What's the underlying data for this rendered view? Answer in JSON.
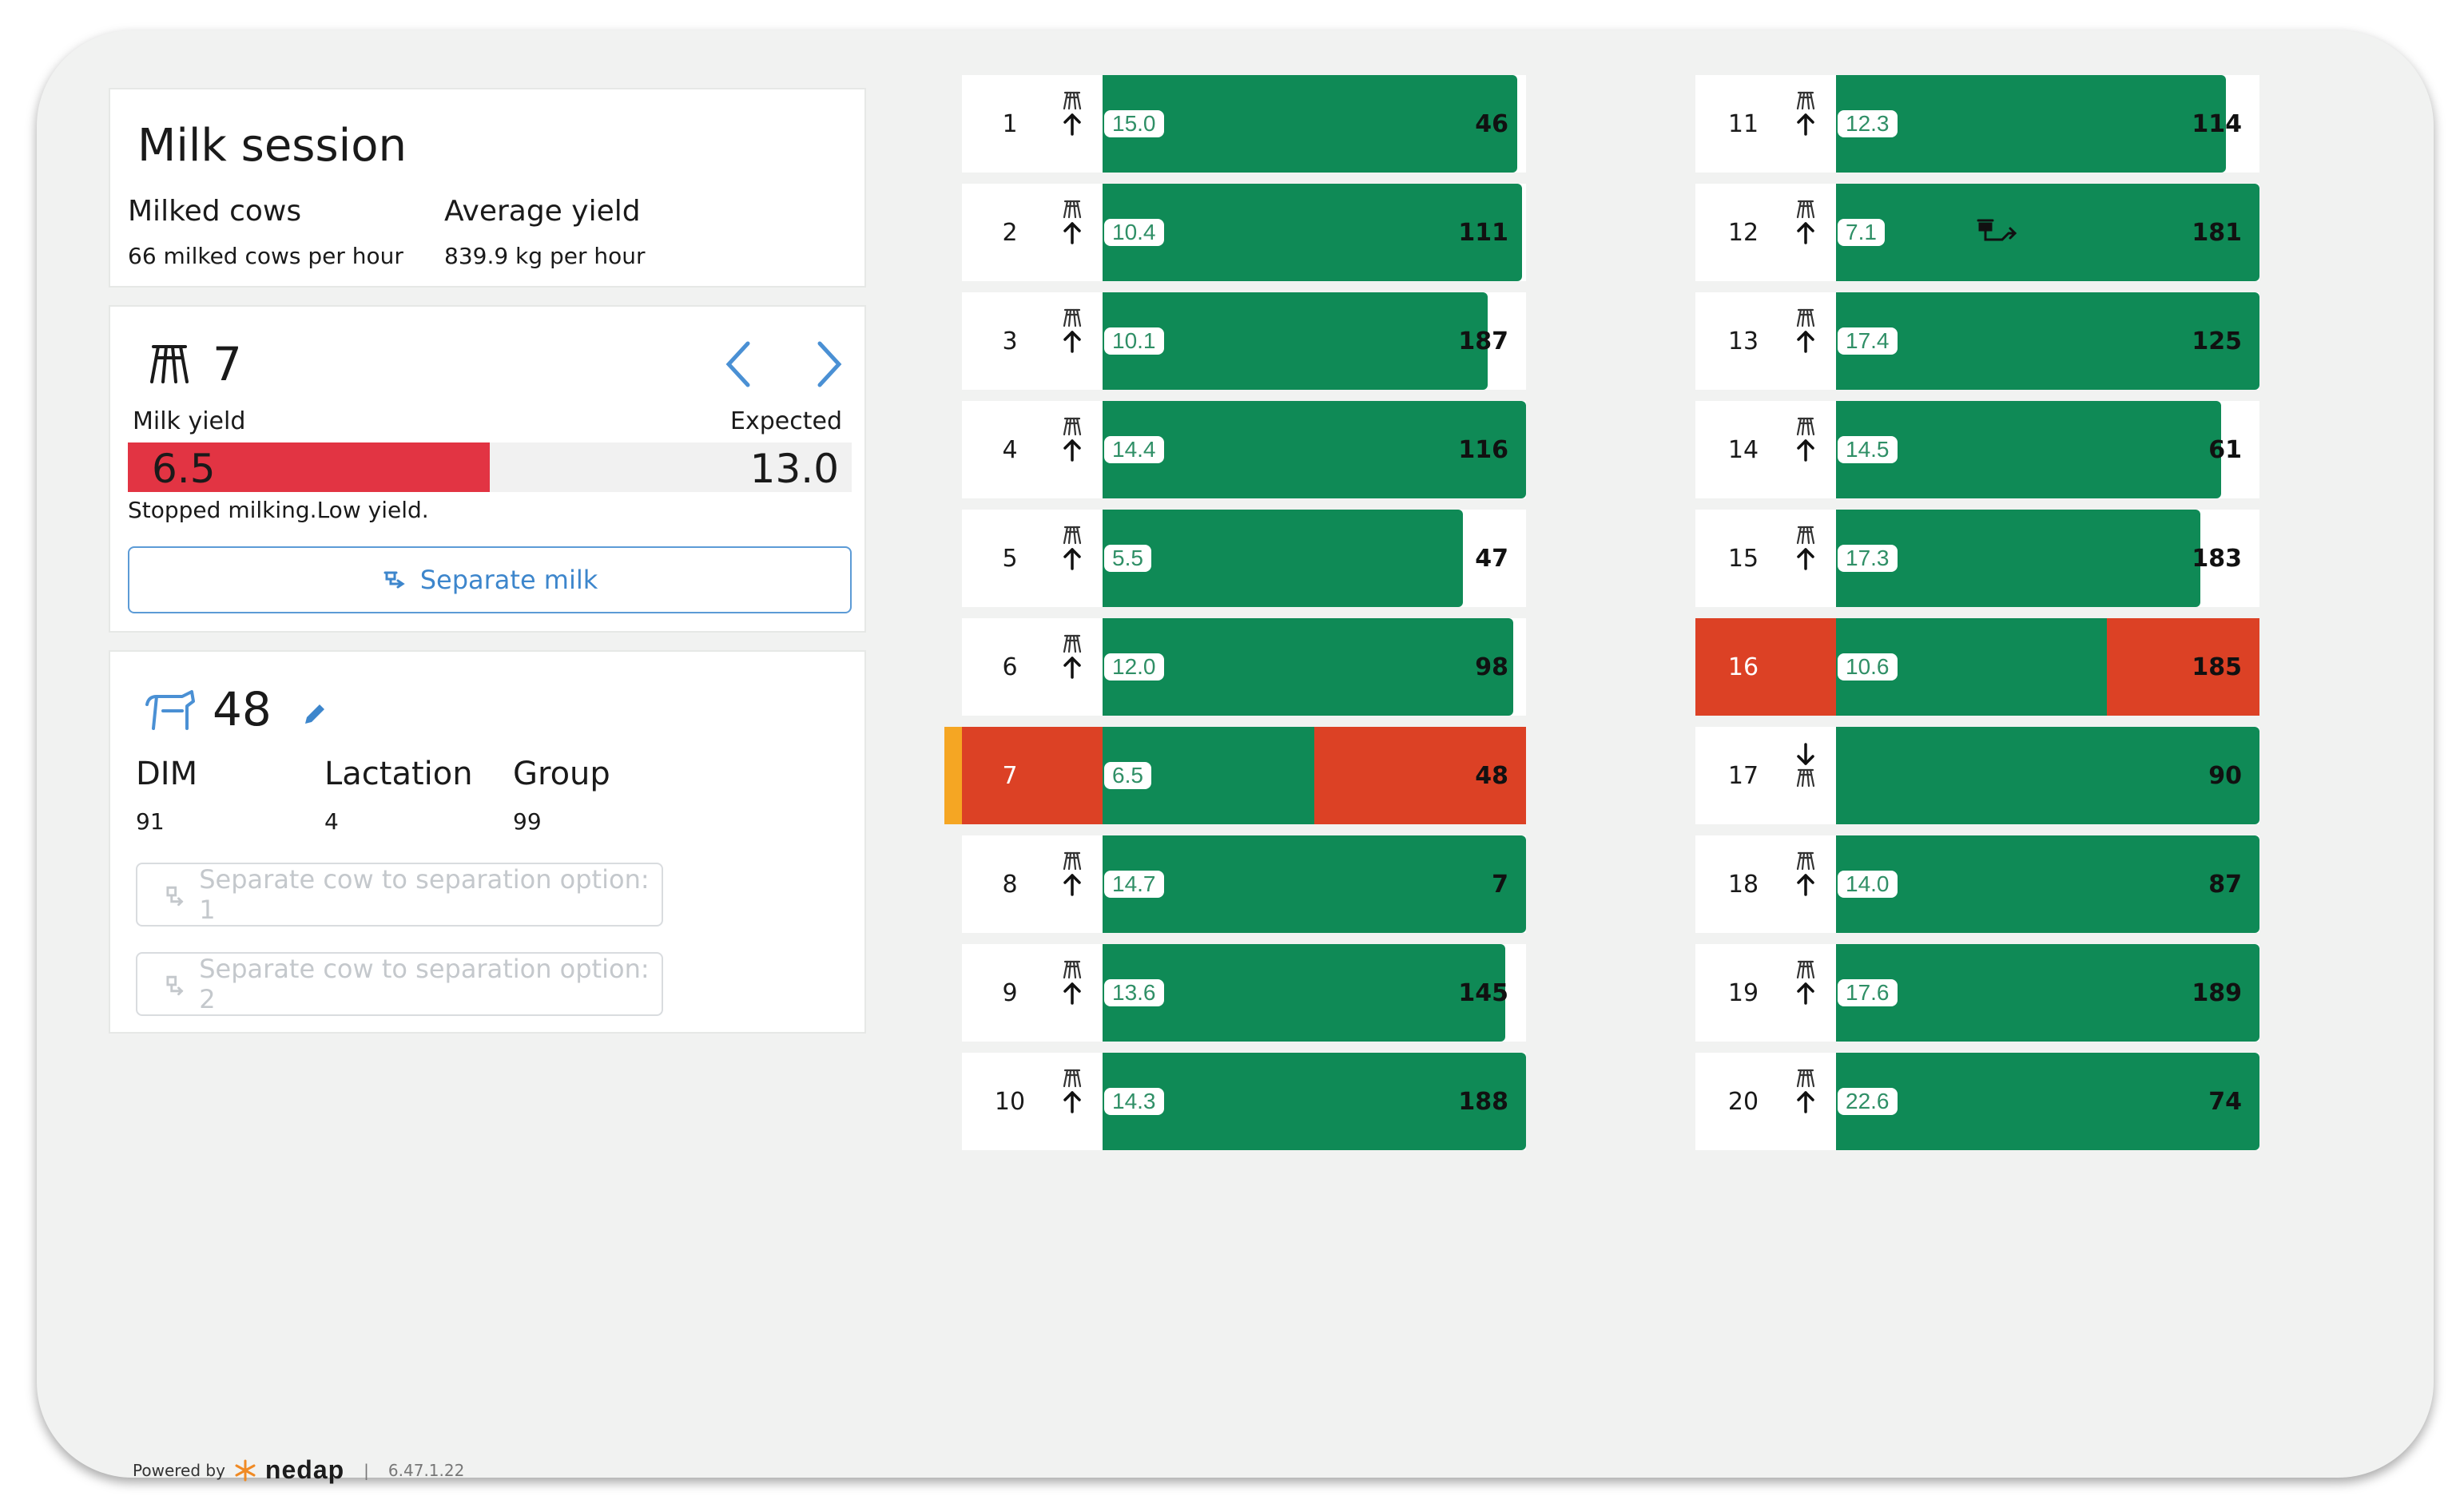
{
  "session": {
    "title": "Milk session",
    "milked_cows_label": "Milked cows",
    "milked_cows_value": "66 milked cows per hour",
    "avg_yield_label": "Average yield",
    "avg_yield_value": "839.9 kg per hour"
  },
  "stall_detail": {
    "stall_number": "7",
    "milk_yield_label": "Milk yield",
    "expected_label": "Expected",
    "milk_yield_value": "6.5",
    "expected_value": "13.0",
    "yield_fraction": 0.5,
    "status": "Stopped milking.Low yield.",
    "separate_milk_label": "Separate milk"
  },
  "cow_detail": {
    "cow_number": "48",
    "dim_label": "DIM",
    "dim_value": "91",
    "lactation_label": "Lactation",
    "lactation_value": "4",
    "group_label": "Group",
    "group_value": "99",
    "option1_label": "Separate cow to separation option: 1",
    "option2_label": "Separate cow to separation option: 2"
  },
  "stalls_left": [
    {
      "stall": "1",
      "yield": "15.0",
      "cow": "46",
      "bar": 0.98,
      "status": "normal",
      "arrow": "up"
    },
    {
      "stall": "2",
      "yield": "10.4",
      "cow": "111",
      "bar": 0.99,
      "status": "normal",
      "arrow": "up"
    },
    {
      "stall": "3",
      "yield": "10.1",
      "cow": "187",
      "bar": 0.91,
      "status": "normal",
      "arrow": "up"
    },
    {
      "stall": "4",
      "yield": "14.4",
      "cow": "116",
      "bar": 1.0,
      "status": "normal",
      "arrow": "up"
    },
    {
      "stall": "5",
      "yield": "5.5",
      "cow": "47",
      "bar": 0.85,
      "status": "normal",
      "arrow": "up"
    },
    {
      "stall": "6",
      "yield": "12.0",
      "cow": "98",
      "bar": 0.97,
      "status": "normal",
      "arrow": "up"
    },
    {
      "stall": "7",
      "yield": "6.5",
      "cow": "48",
      "bar": 0.5,
      "status": "alert",
      "arrow": "none",
      "active": true
    },
    {
      "stall": "8",
      "yield": "14.7",
      "cow": "7",
      "bar": 1.0,
      "status": "normal",
      "arrow": "up"
    },
    {
      "stall": "9",
      "yield": "13.6",
      "cow": "145",
      "bar": 0.95,
      "status": "normal",
      "arrow": "up"
    },
    {
      "stall": "10",
      "yield": "14.3",
      "cow": "188",
      "bar": 1.0,
      "status": "normal",
      "arrow": "up"
    }
  ],
  "stalls_right": [
    {
      "stall": "11",
      "yield": "12.3",
      "cow": "114",
      "bar": 0.92,
      "status": "normal",
      "arrow": "up"
    },
    {
      "stall": "12",
      "yield": "7.1",
      "cow": "181",
      "bar": 1.0,
      "status": "normal",
      "arrow": "up",
      "separation_icon": true
    },
    {
      "stall": "13",
      "yield": "17.4",
      "cow": "125",
      "bar": 1.0,
      "status": "normal",
      "arrow": "up"
    },
    {
      "stall": "14",
      "yield": "14.5",
      "cow": "61",
      "bar": 0.91,
      "status": "normal",
      "arrow": "up"
    },
    {
      "stall": "15",
      "yield": "17.3",
      "cow": "183",
      "bar": 0.86,
      "status": "normal",
      "arrow": "up"
    },
    {
      "stall": "16",
      "yield": "10.6",
      "cow": "185",
      "bar": 0.64,
      "status": "alert",
      "arrow": "none"
    },
    {
      "stall": "17",
      "yield": "",
      "cow": "90",
      "bar": 1.0,
      "status": "normal",
      "arrow": "down"
    },
    {
      "stall": "18",
      "yield": "14.0",
      "cow": "87",
      "bar": 1.0,
      "status": "normal",
      "arrow": "up"
    },
    {
      "stall": "19",
      "yield": "17.6",
      "cow": "189",
      "bar": 1.0,
      "status": "normal",
      "arrow": "up"
    },
    {
      "stall": "20",
      "yield": "22.6",
      "cow": "74",
      "bar": 1.0,
      "status": "normal",
      "arrow": "up"
    }
  ],
  "footer": {
    "powered_by": "Powered by",
    "brand": "nedap",
    "divider": "|",
    "version": "6.47.1.22"
  },
  "colors": {
    "green": "#0f8a56",
    "alert_red": "#dc4125",
    "yield_red": "#e23443",
    "active_marker": "#f5a623",
    "link_blue": "#3d86cc"
  }
}
